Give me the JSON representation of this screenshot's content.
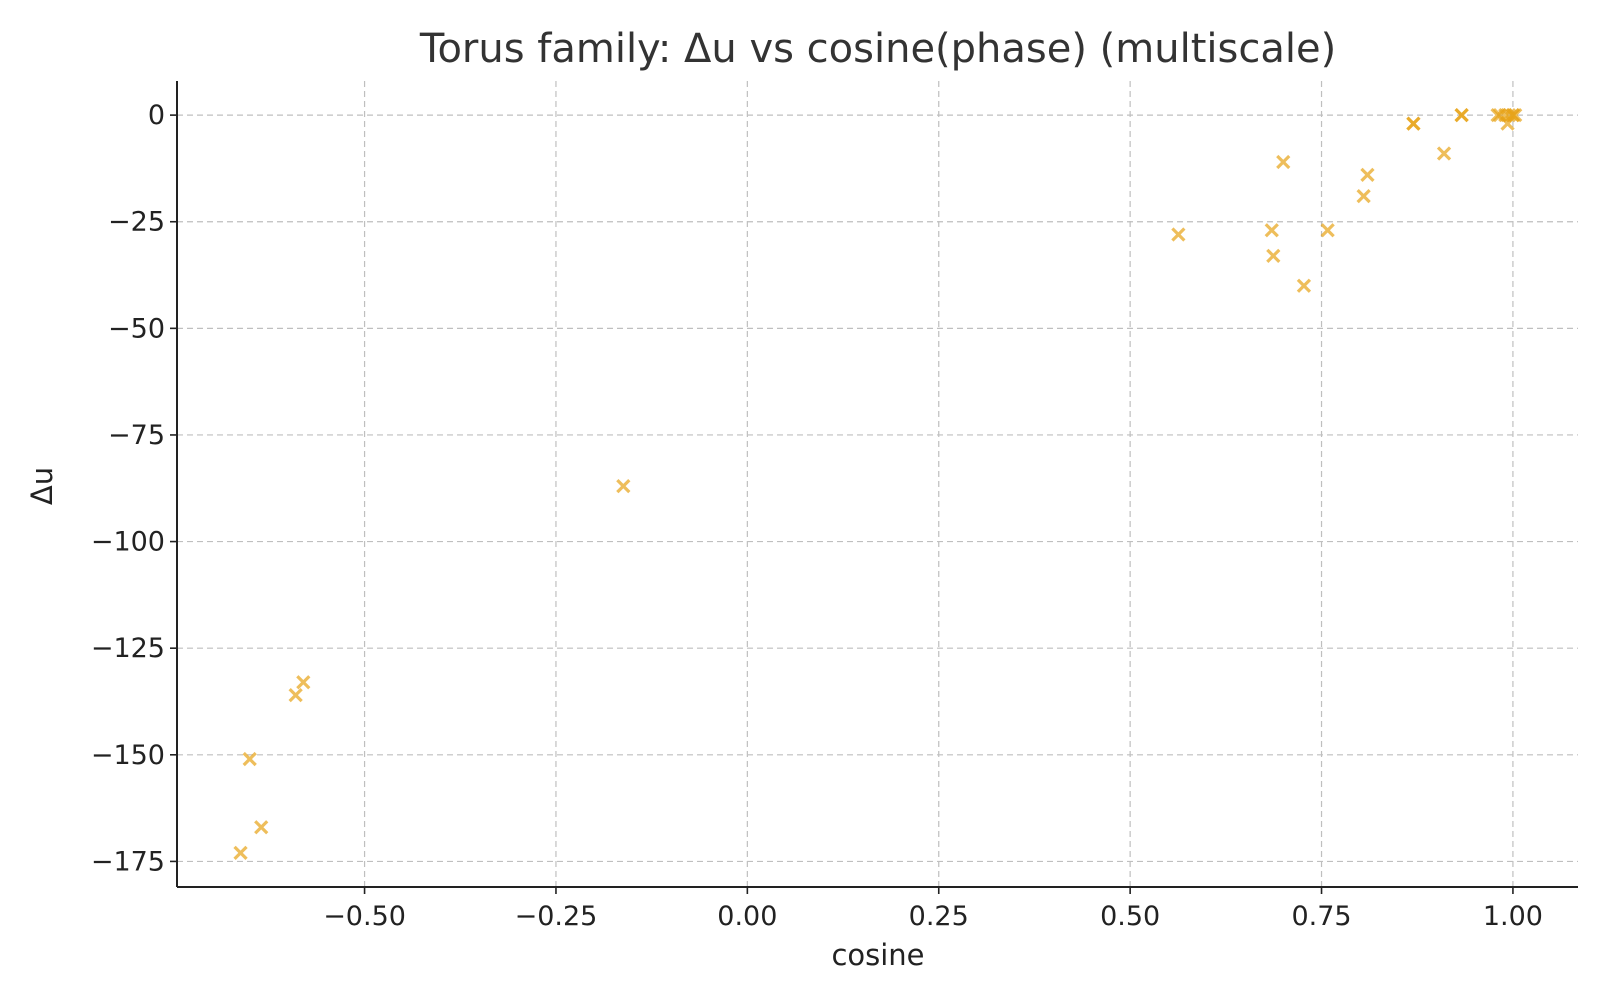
{
  "chart_data": {
    "type": "scatter",
    "title": "Torus family: Δu vs cosine(phase) (multiscale)",
    "xlabel": "cosine",
    "ylabel": "Δu",
    "xlim": [
      -0.745,
      1.085
    ],
    "ylim": [
      -181,
      8
    ],
    "x_ticks": [
      -0.5,
      -0.25,
      0.0,
      0.25,
      0.5,
      0.75,
      1.0
    ],
    "x_tick_labels": [
      "−0.50",
      "−0.25",
      "0.00",
      "0.25",
      "0.50",
      "0.75",
      "1.00"
    ],
    "y_ticks": [
      0,
      -25,
      -50,
      -75,
      -100,
      -125,
      -150,
      -175
    ],
    "y_tick_labels": [
      "0",
      "−25",
      "−50",
      "−75",
      "−100",
      "−125",
      "−150",
      "−175"
    ],
    "grid": true,
    "marker": "x",
    "color": "#e8a317",
    "opacity": 0.7,
    "series": [
      {
        "points": [
          {
            "x": -0.662,
            "y": -173
          },
          {
            "x": -0.635,
            "y": -167
          },
          {
            "x": -0.65,
            "y": -151
          },
          {
            "x": -0.59,
            "y": -136
          },
          {
            "x": -0.58,
            "y": -133
          },
          {
            "x": -0.162,
            "y": -87
          },
          {
            "x": 0.563,
            "y": -28
          },
          {
            "x": 0.685,
            "y": -27
          },
          {
            "x": 0.687,
            "y": -33
          },
          {
            "x": 0.7,
            "y": -11
          },
          {
            "x": 0.727,
            "y": -40
          },
          {
            "x": 0.758,
            "y": -27
          },
          {
            "x": 0.805,
            "y": -19
          },
          {
            "x": 0.81,
            "y": -14
          },
          {
            "x": 0.87,
            "y": -2
          },
          {
            "x": 0.87,
            "y": -2
          },
          {
            "x": 0.91,
            "y": -9
          },
          {
            "x": 0.933,
            "y": 0
          },
          {
            "x": 0.933,
            "y": 0
          },
          {
            "x": 0.98,
            "y": 0
          },
          {
            "x": 0.983,
            "y": 0
          },
          {
            "x": 0.99,
            "y": 0
          },
          {
            "x": 0.993,
            "y": -2
          },
          {
            "x": 0.995,
            "y": 0
          },
          {
            "x": 1.0,
            "y": 0
          },
          {
            "x": 1.0,
            "y": 0
          },
          {
            "x": 1.003,
            "y": 0
          }
        ]
      }
    ]
  }
}
